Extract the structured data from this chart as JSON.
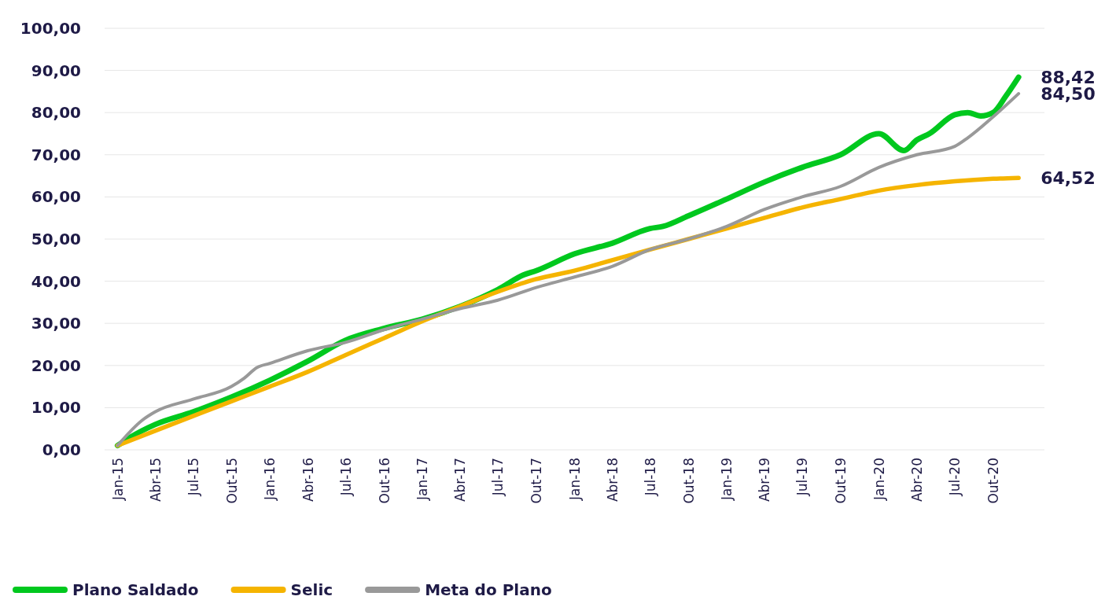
{
  "chart_data": {
    "type": "line",
    "xlim": [
      "2014-12",
      "2021-02"
    ],
    "ylim": [
      0,
      100
    ],
    "xticks": [
      {
        "value": "2015-01",
        "label": "Jan-15"
      },
      {
        "value": "2015-04",
        "label": "Abr-15"
      },
      {
        "value": "2015-07",
        "label": "Jul-15"
      },
      {
        "value": "2015-10",
        "label": "Out-15"
      },
      {
        "value": "2016-01",
        "label": "Jan-16"
      },
      {
        "value": "2016-04",
        "label": "Abr-16"
      },
      {
        "value": "2016-07",
        "label": "Jul-16"
      },
      {
        "value": "2016-10",
        "label": "Out-16"
      },
      {
        "value": "2017-01",
        "label": "Jan-17"
      },
      {
        "value": "2017-04",
        "label": "Abr-17"
      },
      {
        "value": "2017-07",
        "label": "Jul-17"
      },
      {
        "value": "2017-10",
        "label": "Out-17"
      },
      {
        "value": "2018-01",
        "label": "Jan-18"
      },
      {
        "value": "2018-04",
        "label": "Abr-18"
      },
      {
        "value": "2018-07",
        "label": "Jul-18"
      },
      {
        "value": "2018-10",
        "label": "Out-18"
      },
      {
        "value": "2019-01",
        "label": "Jan-19"
      },
      {
        "value": "2019-04",
        "label": "Abr-19"
      },
      {
        "value": "2019-07",
        "label": "Jul-19"
      },
      {
        "value": "2019-10",
        "label": "Out-19"
      },
      {
        "value": "2020-01",
        "label": "Jan-20"
      },
      {
        "value": "2020-04",
        "label": "Abr-20"
      },
      {
        "value": "2020-07",
        "label": "Jul-20"
      },
      {
        "value": "2020-10",
        "label": "Out-20"
      }
    ],
    "yticks": [
      {
        "value": 0,
        "label": "0,00"
      },
      {
        "value": 10,
        "label": "10,00"
      },
      {
        "value": 20,
        "label": "20,00"
      },
      {
        "value": 30,
        "label": "30,00"
      },
      {
        "value": 40,
        "label": "40,00"
      },
      {
        "value": 50,
        "label": "50,00"
      },
      {
        "value": 60,
        "label": "60,00"
      },
      {
        "value": 70,
        "label": "70,00"
      },
      {
        "value": 80,
        "label": "80,00"
      },
      {
        "value": 90,
        "label": "90,00"
      },
      {
        "value": 100,
        "label": "100,00"
      }
    ],
    "grid": "y",
    "legend": "bottom",
    "line_style": "solid",
    "series": [
      {
        "name": "Plano Saldado",
        "color": "#00c81e",
        "x": [
          "2015-01",
          "2015-02",
          "2015-04",
          "2015-07",
          "2015-10",
          "2016-01",
          "2016-04",
          "2016-07",
          "2016-10",
          "2017-01",
          "2017-04",
          "2017-07",
          "2017-09",
          "2017-10",
          "2018-01",
          "2018-04",
          "2018-07",
          "2018-08",
          "2018-10",
          "2019-01",
          "2019-04",
          "2019-07",
          "2019-10",
          "2020-01",
          "2020-03",
          "2020-04",
          "2020-05",
          "2020-07",
          "2020-08",
          "2020-09",
          "2020-10",
          "2020-11",
          "2020-12"
        ],
        "values": [
          1,
          3,
          6,
          9,
          12.5,
          16.5,
          21,
          26,
          28.8,
          31,
          34,
          38,
          41.5,
          42.5,
          46.5,
          49,
          52.5,
          53,
          55.5,
          59.5,
          63.5,
          67,
          70,
          75,
          71,
          73.5,
          75,
          79.5,
          80,
          79.2,
          80,
          84,
          88.42
        ],
        "value_labels": [
          null,
          null,
          null,
          null,
          null,
          null,
          null,
          null,
          null,
          null,
          null,
          null,
          null,
          null,
          null,
          null,
          null,
          null,
          null,
          null,
          null,
          null,
          null,
          null,
          null,
          null,
          null,
          null,
          null,
          null,
          null,
          null,
          "88,42"
        ]
      },
      {
        "name": "Selic",
        "color": "#f5b400",
        "x": [
          "2015-01",
          "2015-04",
          "2015-07",
          "2015-10",
          "2016-01",
          "2016-04",
          "2016-07",
          "2016-10",
          "2017-01",
          "2017-04",
          "2017-07",
          "2017-10",
          "2018-01",
          "2018-04",
          "2018-07",
          "2018-10",
          "2019-01",
          "2019-04",
          "2019-07",
          "2019-10",
          "2020-01",
          "2020-04",
          "2020-07",
          "2020-10",
          "2020-12"
        ],
        "values": [
          1,
          4.5,
          8,
          11.5,
          15,
          18.5,
          22.5,
          26.5,
          30.5,
          34,
          37.5,
          40.5,
          42.5,
          45,
          47.5,
          50,
          52.5,
          55,
          57.5,
          59.5,
          61.5,
          62.8,
          63.7,
          64.3,
          64.52
        ],
        "value_labels": [
          null,
          null,
          null,
          null,
          null,
          null,
          null,
          null,
          null,
          null,
          null,
          null,
          null,
          null,
          null,
          null,
          null,
          null,
          null,
          null,
          null,
          null,
          null,
          null,
          "64,52"
        ]
      },
      {
        "name": "Meta do Plano",
        "color": "#999999",
        "x": [
          "2015-01",
          "2015-03",
          "2015-04",
          "2015-07",
          "2015-10",
          "2015-11",
          "2015-12",
          "2016-01",
          "2016-04",
          "2016-07",
          "2016-10",
          "2017-01",
          "2017-04",
          "2017-07",
          "2017-10",
          "2018-01",
          "2018-04",
          "2018-07",
          "2018-10",
          "2019-01",
          "2019-04",
          "2019-07",
          "2019-10",
          "2020-01",
          "2020-04",
          "2020-07",
          "2020-08",
          "2020-10",
          "2020-12"
        ],
        "values": [
          1,
          7,
          9,
          12,
          15,
          17,
          19.5,
          20.5,
          23.5,
          25.5,
          28.5,
          31,
          33.5,
          35.5,
          38.5,
          41,
          43.5,
          47.5,
          50,
          53,
          57,
          60,
          62.5,
          67,
          70,
          72,
          74,
          79,
          84.5
        ],
        "value_labels": [
          null,
          null,
          null,
          null,
          null,
          null,
          null,
          null,
          null,
          null,
          null,
          null,
          null,
          null,
          null,
          null,
          null,
          null,
          null,
          null,
          null,
          null,
          null,
          null,
          null,
          null,
          null,
          null,
          "84,50"
        ]
      }
    ]
  }
}
